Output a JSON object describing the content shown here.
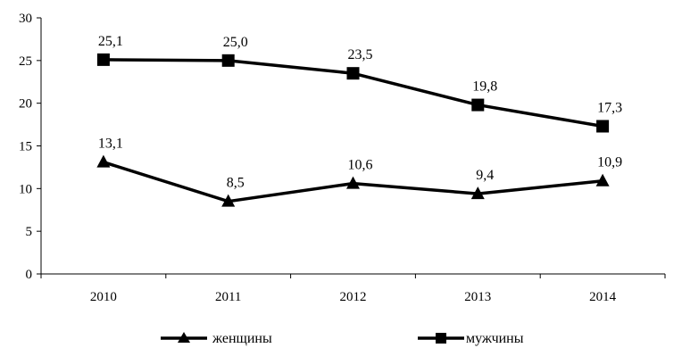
{
  "chart_data": {
    "type": "line",
    "categories": [
      "2010",
      "2011",
      "2012",
      "2013",
      "2014"
    ],
    "series": [
      {
        "name": "мужчины",
        "values": [
          25.1,
          25.0,
          23.5,
          19.8,
          17.3
        ],
        "labels": [
          "25,1",
          "25,0",
          "23,5",
          "19,8",
          "17,3"
        ],
        "marker": "square",
        "color": "#000000"
      },
      {
        "name": "женщины",
        "values": [
          13.1,
          8.5,
          10.6,
          9.4,
          10.9
        ],
        "labels": [
          "13,1",
          "8,5",
          "10,6",
          "9,4",
          "10,9"
        ],
        "marker": "triangle",
        "color": "#000000"
      }
    ],
    "ylim": [
      0,
      30
    ],
    "yticks": [
      0,
      5,
      10,
      15,
      20,
      25,
      30
    ],
    "grid": false,
    "legend": "bottom"
  },
  "legend": {
    "women_label": "женщины",
    "men_label": "мужчины"
  }
}
